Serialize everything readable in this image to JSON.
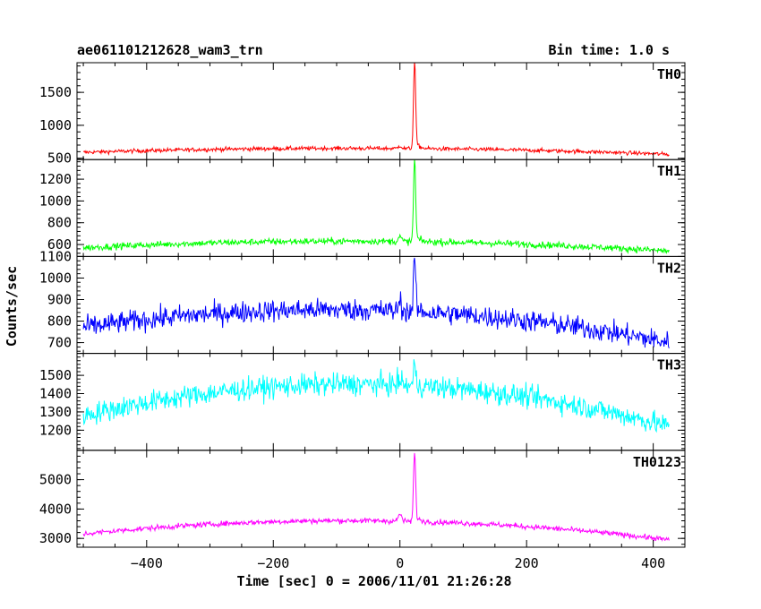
{
  "chart_data": {
    "type": "line",
    "title": "ae061101212628_wam3_trn",
    "subtitle": "Bin time: 1.0 s",
    "xlabel": "Time [sec] 0 = 2006/11/01 21:26:28",
    "ylabel": "Counts/sec",
    "xlim": [
      -510,
      450
    ],
    "x_ticks": [
      -400,
      -200,
      0,
      200,
      400
    ],
    "x_tick_labels": [
      "−400",
      "−200",
      "0",
      "200",
      "400"
    ],
    "x_range_data": [
      -500,
      425
    ],
    "peak_x": 23,
    "panels": [
      {
        "name": "TH0",
        "color": "#ff0000",
        "ylim": [
          480,
          1950
        ],
        "y_ticks": [
          500,
          1000,
          1500
        ],
        "baseline_start": 590,
        "baseline_mid": 650,
        "baseline_end": 560,
        "noise": 30,
        "peak_value": 1950,
        "pre_bump": 720
      },
      {
        "name": "TH1",
        "color": "#00ff00",
        "ylim": [
          490,
          1380
        ],
        "y_ticks": [
          600,
          800,
          1000,
          1200
        ],
        "baseline_start": 570,
        "baseline_mid": 630,
        "baseline_end": 540,
        "noise": 30,
        "peak_value": 1370,
        "pre_bump": 700
      },
      {
        "name": "TH2",
        "color": "#0000ff",
        "ylim": [
          650,
          1100
        ],
        "y_ticks": [
          700,
          800,
          900,
          1000,
          1100
        ],
        "baseline_start": 770,
        "baseline_mid": 850,
        "baseline_end": 700,
        "noise": 50,
        "peak_value": 1090,
        "pre_bump": 920
      },
      {
        "name": "TH3",
        "color": "#00ffff",
        "ylim": [
          1090,
          1620
        ],
        "y_ticks": [
          1200,
          1300,
          1400,
          1500
        ],
        "baseline_start": 1280,
        "baseline_mid": 1450,
        "baseline_end": 1220,
        "noise": 60,
        "peak_value": 1560,
        "pre_bump": 1500
      },
      {
        "name": "TH0123",
        "color": "#ff00ff",
        "ylim": [
          2700,
          6000
        ],
        "y_ticks": [
          3000,
          4000,
          5000
        ],
        "baseline_start": 3150,
        "baseline_mid": 3600,
        "baseline_end": 2950,
        "noise": 90,
        "peak_value": 5900,
        "pre_bump": 4000
      }
    ]
  }
}
